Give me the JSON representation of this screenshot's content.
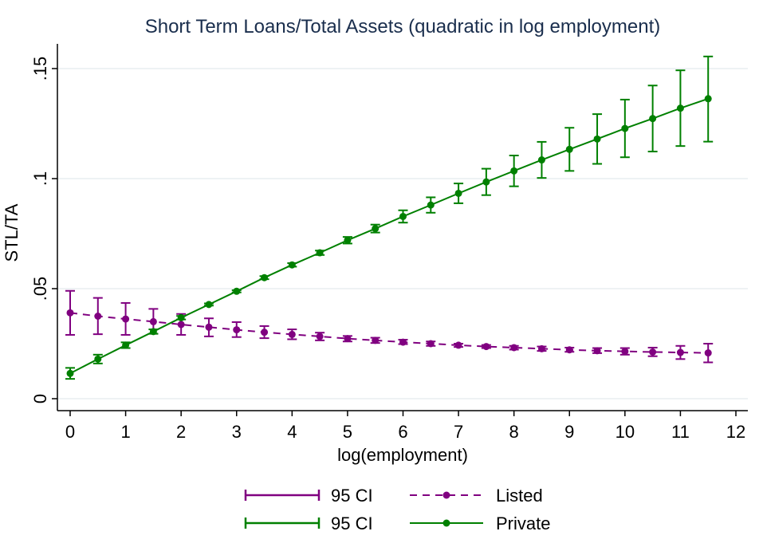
{
  "chart_data": {
    "type": "line",
    "title": "Short Term Loans/Total Assets (quadratic in log employment)",
    "xlabel": "log(employment)",
    "ylabel": "STL/TA",
    "xlim": [
      0,
      12
    ],
    "ylim": [
      0,
      0.155
    ],
    "xticks": [
      "0",
      "1",
      "2",
      "3",
      "4",
      "5",
      "6",
      "7",
      "8",
      "9",
      "10",
      "11",
      "12"
    ],
    "yticks": [
      {
        "value": 0,
        "label": "0"
      },
      {
        "value": 0.05,
        "label": ".05"
      },
      {
        "value": 0.1,
        "label": ".1"
      },
      {
        "value": 0.15,
        "label": ".15"
      }
    ],
    "grid": true,
    "legend_position": "bottom",
    "x": [
      0,
      0.5,
      1,
      1.5,
      2,
      2.5,
      3,
      3.5,
      4,
      4.5,
      5,
      5.5,
      6,
      6.5,
      7,
      7.5,
      8,
      8.5,
      9,
      9.5,
      10,
      10.5,
      11,
      11.5
    ],
    "series": [
      {
        "name": "Listed",
        "ci_label": "95 CI",
        "color": "#800080",
        "style": "dashed",
        "values": [
          0.039,
          0.0375,
          0.0362,
          0.035,
          0.0337,
          0.0325,
          0.0313,
          0.0302,
          0.0292,
          0.0283,
          0.0273,
          0.0265,
          0.0257,
          0.025,
          0.0243,
          0.0237,
          0.0232,
          0.0227,
          0.0222,
          0.0218,
          0.0215,
          0.0212,
          0.021,
          0.0208
        ],
        "ci_low": [
          0.029,
          0.0293,
          0.029,
          0.0295,
          0.029,
          0.0283,
          0.028,
          0.0275,
          0.027,
          0.0265,
          0.026,
          0.0253,
          0.0248,
          0.024,
          0.0235,
          0.023,
          0.0223,
          0.0217,
          0.0213,
          0.0207,
          0.02,
          0.0193,
          0.018,
          0.0165
        ],
        "ci_high": [
          0.049,
          0.0458,
          0.0435,
          0.0408,
          0.0385,
          0.0365,
          0.0348,
          0.033,
          0.0315,
          0.03,
          0.0285,
          0.0277,
          0.0268,
          0.026,
          0.025,
          0.0244,
          0.024,
          0.0237,
          0.0232,
          0.023,
          0.023,
          0.0232,
          0.024,
          0.025
        ]
      },
      {
        "name": "Private",
        "ci_label": "95 CI",
        "color": "#008000",
        "style": "solid",
        "values": [
          0.0115,
          0.018,
          0.0243,
          0.0305,
          0.0368,
          0.0428,
          0.0488,
          0.055,
          0.0608,
          0.0663,
          0.072,
          0.0773,
          0.0828,
          0.088,
          0.0933,
          0.0985,
          0.1035,
          0.1085,
          0.1133,
          0.118,
          0.1228,
          0.1273,
          0.132,
          0.1363
        ],
        "ci_low": [
          0.009,
          0.016,
          0.023,
          0.0295,
          0.036,
          0.0423,
          0.0483,
          0.0543,
          0.06,
          0.0653,
          0.0705,
          0.0755,
          0.08,
          0.0845,
          0.0888,
          0.0925,
          0.0965,
          0.1003,
          0.1035,
          0.1067,
          0.1097,
          0.1123,
          0.1148,
          0.1168
        ],
        "ci_high": [
          0.014,
          0.02,
          0.0256,
          0.0315,
          0.0376,
          0.0433,
          0.0493,
          0.0557,
          0.0616,
          0.0673,
          0.0735,
          0.0791,
          0.0856,
          0.0915,
          0.0978,
          0.1045,
          0.1105,
          0.1167,
          0.1231,
          0.1293,
          0.1359,
          0.1423,
          0.1492,
          0.1555
        ]
      }
    ]
  }
}
